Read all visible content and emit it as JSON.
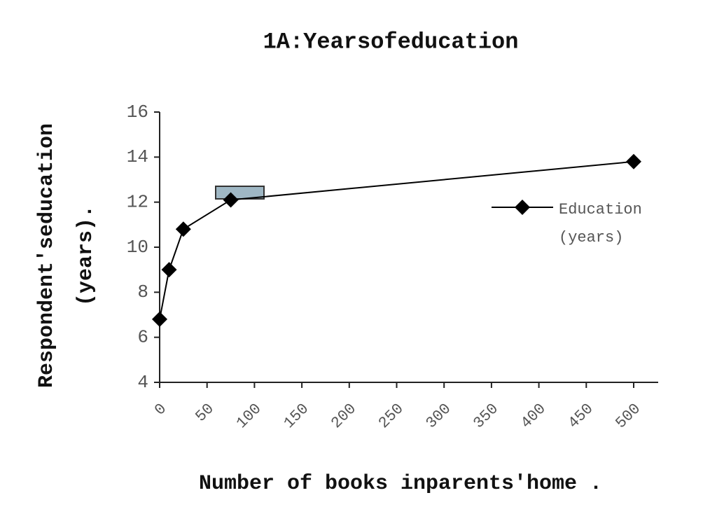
{
  "chart_data": {
    "type": "line",
    "title": "1A:Yearsofeducation",
    "x_label": "Number of books inparents'home .",
    "y_label": [
      "Respondent'seducation",
      "(years)."
    ],
    "x": [
      0,
      10,
      25,
      75,
      500
    ],
    "series": [
      {
        "name": "Education (years)",
        "color": "#000000",
        "values": [
          6.8,
          9.0,
          10.8,
          12.1,
          13.8
        ]
      }
    ],
    "xlim": [
      0,
      500
    ],
    "xticks": [
      0,
      50,
      100,
      150,
      200,
      250,
      300,
      350,
      400,
      450,
      500
    ],
    "ylim": [
      4,
      16
    ],
    "yticks": [
      4,
      6,
      8,
      10,
      12,
      14,
      16
    ],
    "grid": false,
    "legend": "right"
  }
}
